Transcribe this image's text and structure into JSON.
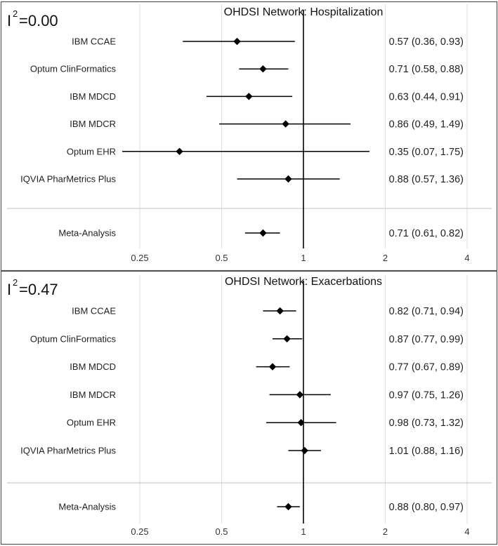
{
  "chart_data": [
    {
      "type": "forest",
      "title": "OHDSI Network: Hospitalization",
      "heterogeneity": {
        "stat_base": "I",
        "stat_exp": "2",
        "value_text": "=0.00"
      },
      "x_scale": "log",
      "xlim": [
        0.2,
        4.8
      ],
      "ticks": [
        0.25,
        0.5,
        1,
        2,
        4
      ],
      "tick_labels": [
        "0.25",
        "0.5",
        "1",
        "2",
        "4"
      ],
      "reference_line": 1,
      "studies": [
        {
          "name": "IBM CCAE",
          "estimate": 0.57,
          "lower": 0.36,
          "upper": 0.93,
          "label": "0.57 (0.36, 0.93)"
        },
        {
          "name": "Optum ClinFormatics",
          "estimate": 0.71,
          "lower": 0.58,
          "upper": 0.88,
          "label": "0.71 (0.58, 0.88)"
        },
        {
          "name": "IBM MDCD",
          "estimate": 0.63,
          "lower": 0.44,
          "upper": 0.91,
          "label": "0.63 (0.44, 0.91)"
        },
        {
          "name": "IBM MDCR",
          "estimate": 0.86,
          "lower": 0.49,
          "upper": 1.49,
          "label": "0.86 (0.49, 1.49)"
        },
        {
          "name": "Optum EHR",
          "estimate": 0.35,
          "lower": 0.07,
          "upper": 1.75,
          "label": "0.35 (0.07, 1.75)"
        },
        {
          "name": "IQVIA PharMetrics Plus",
          "estimate": 0.88,
          "lower": 0.57,
          "upper": 1.36,
          "label": "0.88 (0.57, 1.36)"
        }
      ],
      "summary": {
        "name": "Meta-Analysis",
        "estimate": 0.71,
        "lower": 0.61,
        "upper": 0.82,
        "label": "0.71 (0.61, 0.82)"
      }
    },
    {
      "type": "forest",
      "title": "OHDSI Network: Exacerbations",
      "heterogeneity": {
        "stat_base": "I",
        "stat_exp": "2",
        "value_text": "=0.47"
      },
      "x_scale": "log",
      "xlim": [
        0.2,
        4.8
      ],
      "ticks": [
        0.25,
        0.5,
        1,
        2,
        4
      ],
      "tick_labels": [
        "0.25",
        "0.5",
        "1",
        "2",
        "4"
      ],
      "reference_line": 1,
      "studies": [
        {
          "name": "IBM CCAE",
          "estimate": 0.82,
          "lower": 0.71,
          "upper": 0.94,
          "label": "0.82 (0.71, 0.94)"
        },
        {
          "name": "Optum ClinFormatics",
          "estimate": 0.87,
          "lower": 0.77,
          "upper": 0.99,
          "label": "0.87 (0.77, 0.99)"
        },
        {
          "name": "IBM MDCD",
          "estimate": 0.77,
          "lower": 0.67,
          "upper": 0.89,
          "label": "0.77 (0.67, 0.89)"
        },
        {
          "name": "IBM MDCR",
          "estimate": 0.97,
          "lower": 0.75,
          "upper": 1.26,
          "label": "0.97 (0.75, 1.26)"
        },
        {
          "name": "Optum EHR",
          "estimate": 0.98,
          "lower": 0.73,
          "upper": 1.32,
          "label": "0.98 (0.73, 1.32)"
        },
        {
          "name": "IQVIA PharMetrics Plus",
          "estimate": 1.01,
          "lower": 0.88,
          "upper": 1.16,
          "label": "1.01 (0.88, 1.16)"
        }
      ],
      "summary": {
        "name": "Meta-Analysis",
        "estimate": 0.88,
        "lower": 0.8,
        "upper": 0.97,
        "label": "0.88 (0.80, 0.97)"
      }
    }
  ],
  "colors": {
    "marker": "#000000",
    "whisker": "#000000",
    "reference_line": "#000000",
    "gridline": "#dddddd",
    "separator": "#cccccc",
    "frame": "#555555",
    "text": "#222222"
  }
}
